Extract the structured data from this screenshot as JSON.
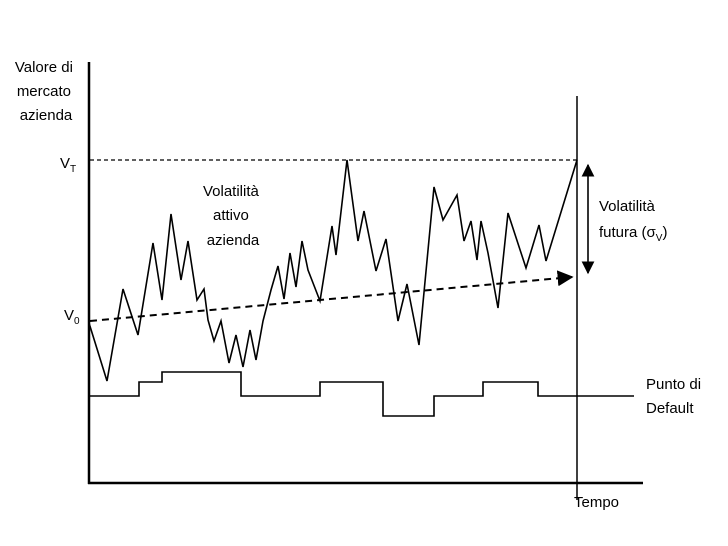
{
  "y_axis_label": [
    "Valore di",
    "mercato",
    "azienda"
  ],
  "x_axis_label": "Tempo",
  "v_t_label": {
    "main": "V",
    "sub": "T"
  },
  "v_0_label": {
    "main": "V",
    "sub": "0"
  },
  "asset_volatility_label": [
    "Volatilità",
    "attivo",
    "azienda"
  ],
  "future_volatility_label": {
    "line1": "Volatilità",
    "line2_prefix": "futura (σ",
    "line2_sub": "V",
    "line2_suffix": ")"
  },
  "default_point_label": [
    "Punto di",
    "Default"
  ],
  "colors": {
    "line": "#000000",
    "background": "#ffffff"
  }
}
